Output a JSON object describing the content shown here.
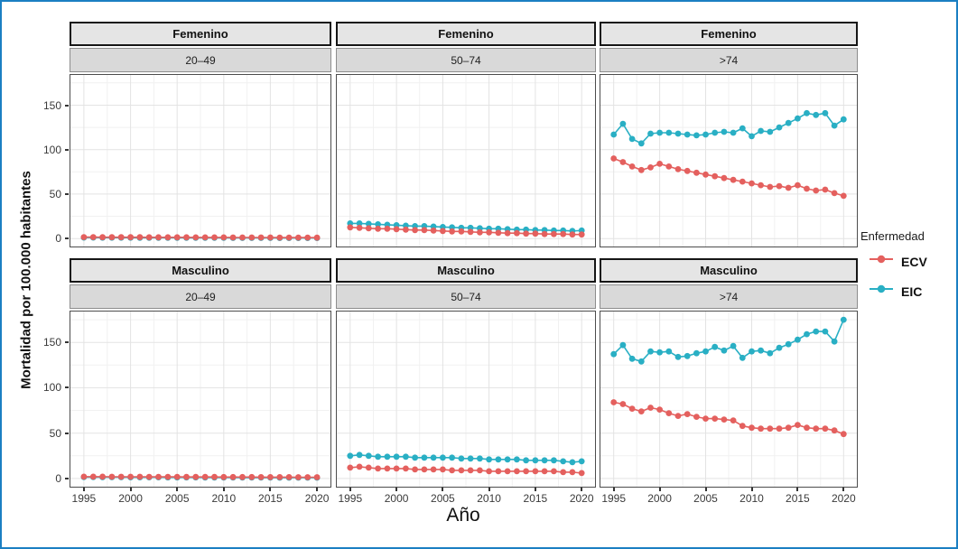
{
  "figure": {
    "xlabel": "Año",
    "ylabel": "Mortalidad por 100.000 habitantes",
    "border_color": "#1b7fc2"
  },
  "legend": {
    "title": "Enfermedad",
    "entries": [
      {
        "label": "ECV",
        "color": "#e4605e"
      },
      {
        "label": "EIC",
        "color": "#29afc4"
      }
    ]
  },
  "chart_data": {
    "type": "line",
    "title": "",
    "xlabel": "Año",
    "ylabel": "Mortalidad por 100.000 habitantes",
    "x": [
      1995,
      1996,
      1997,
      1998,
      1999,
      2000,
      2001,
      2002,
      2003,
      2004,
      2005,
      2006,
      2007,
      2008,
      2009,
      2010,
      2011,
      2012,
      2013,
      2014,
      2015,
      2016,
      2017,
      2018,
      2019,
      2020
    ],
    "x_ticks": [
      1995,
      2000,
      2005,
      2010,
      2015,
      2020
    ],
    "y_ticks": [
      0,
      50,
      100,
      150
    ],
    "ylim": [
      -10,
      185
    ],
    "grid": true,
    "legend_position": "right",
    "facet_rows": [
      "Femenino",
      "Masculino"
    ],
    "facet_cols": [
      "20–49",
      "50–74",
      ">74"
    ],
    "facets": [
      {
        "row": "Femenino",
        "col": "20–49",
        "series": [
          {
            "name": "ECV",
            "values": [
              1.6,
              1.6,
              1.5,
              1.5,
              1.5,
              1.5,
              1.5,
              1.4,
              1.4,
              1.4,
              1.4,
              1.4,
              1.3,
              1.3,
              1.3,
              1.3,
              1.2,
              1.2,
              1.2,
              1.2,
              1.2,
              1.1,
              1.1,
              1.1,
              1.1,
              1.0
            ]
          },
          {
            "name": "EIC",
            "values": [
              1.1,
              1.1,
              1.0,
              1.0,
              1.0,
              1.0,
              0.9,
              0.9,
              0.9,
              0.9,
              0.9,
              0.8,
              0.8,
              0.8,
              0.8,
              0.8,
              0.7,
              0.7,
              0.7,
              0.7,
              0.7,
              0.6,
              0.6,
              0.6,
              0.6,
              0.6
            ]
          }
        ]
      },
      {
        "row": "Femenino",
        "col": "50–74",
        "series": [
          {
            "name": "ECV",
            "values": [
              12.5,
              12,
              11.5,
              11,
              11,
              10.5,
              10,
              9.5,
              9.5,
              9,
              8.5,
              8,
              8,
              7.5,
              7,
              7,
              6.5,
              6,
              6,
              5.5,
              5.5,
              5,
              5,
              5,
              4.5,
              4.5
            ]
          },
          {
            "name": "EIC",
            "values": [
              17,
              17,
              16.5,
              16,
              15.5,
              15,
              14.5,
              14,
              14,
              13.5,
              13,
              12.5,
              12,
              12,
              11.5,
              11,
              11,
              10.5,
              10,
              10,
              9.5,
              9.5,
              9,
              9,
              8.5,
              9
            ]
          }
        ]
      },
      {
        "row": "Femenino",
        "col": ">74",
        "series": [
          {
            "name": "ECV",
            "values": [
              90,
              86,
              81,
              77,
              80,
              84,
              81,
              78,
              76,
              74,
              72,
              70,
              68,
              66,
              64,
              62,
              60,
              58,
              59,
              57,
              60,
              56,
              54,
              55,
              51,
              48
            ]
          },
          {
            "name": "EIC",
            "values": [
              117,
              129,
              112,
              107,
              118,
              119,
              119,
              118,
              117,
              116,
              117,
              119,
              120,
              119,
              124,
              115,
              121,
              120,
              125,
              130,
              135,
              141,
              139,
              141,
              127,
              134
            ]
          }
        ]
      },
      {
        "row": "Masculino",
        "col": "20–49",
        "series": [
          {
            "name": "ECV",
            "values": [
              2.0,
              2.0,
              2.0,
              1.9,
              1.9,
              1.9,
              1.9,
              1.8,
              1.8,
              1.8,
              1.8,
              1.7,
              1.7,
              1.7,
              1.7,
              1.6,
              1.6,
              1.6,
              1.6,
              1.5,
              1.5,
              1.5,
              1.5,
              1.4,
              1.4,
              1.4
            ]
          },
          {
            "name": "EIC",
            "values": [
              1.5,
              1.5,
              1.4,
              1.4,
              1.4,
              1.3,
              1.3,
              1.3,
              1.3,
              1.2,
              1.2,
              1.2,
              1.2,
              1.1,
              1.1,
              1.1,
              1.1,
              1.0,
              1.0,
              1.0,
              1.0,
              0.9,
              0.9,
              0.9,
              0.9,
              0.9
            ]
          }
        ]
      },
      {
        "row": "Masculino",
        "col": "50–74",
        "series": [
          {
            "name": "ECV",
            "values": [
              12,
              13,
              12,
              11,
              11,
              11,
              11,
              10,
              10,
              10,
              10,
              9,
              9,
              9,
              9,
              8,
              8,
              8,
              8,
              8,
              8,
              8,
              8,
              7,
              7,
              6
            ]
          },
          {
            "name": "EIC",
            "values": [
              25,
              26,
              25,
              24,
              24,
              24,
              24,
              23,
              23,
              23,
              23,
              23,
              22,
              22,
              22,
              21,
              21,
              21,
              21,
              20,
              20,
              20,
              20,
              19,
              18,
              19
            ]
          }
        ]
      },
      {
        "row": "Masculino",
        "col": ">74",
        "series": [
          {
            "name": "ECV",
            "values": [
              84,
              82,
              77,
              74,
              78,
              76,
              72,
              69,
              71,
              68,
              66,
              66,
              65,
              64,
              58,
              56,
              55,
              55,
              55,
              56,
              59,
              56,
              55,
              55,
              53,
              49
            ]
          },
          {
            "name": "EIC",
            "values": [
              137,
              147,
              132,
              129,
              140,
              139,
              140,
              134,
              135,
              138,
              140,
              145,
              141,
              146,
              133,
              140,
              141,
              138,
              144,
              148,
              153,
              159,
              162,
              162,
              151,
              175
            ]
          }
        ]
      }
    ]
  }
}
